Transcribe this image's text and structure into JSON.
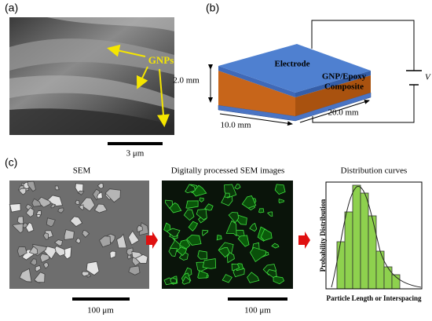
{
  "panel_a": {
    "label": "(a)",
    "annotation": "GNPs",
    "scale_bar": "3 μm"
  },
  "panel_b": {
    "label": "(b)",
    "electrode": "Electrode",
    "composite": [
      "GNP/Epoxy",
      "Composite"
    ],
    "voltage": "V",
    "dimensions": {
      "height": "2.0 mm",
      "width": "10.0 mm",
      "length": "20.0 mm"
    }
  },
  "panel_c": {
    "label": "(c)",
    "titles": [
      "SEM",
      "Digitally processed SEM images",
      "Distribution curves"
    ],
    "scale_bars": [
      "100 μm",
      "100 μm"
    ],
    "y_label": "Probability Distribution",
    "x_label": "Particle Length or Interspacing"
  }
}
